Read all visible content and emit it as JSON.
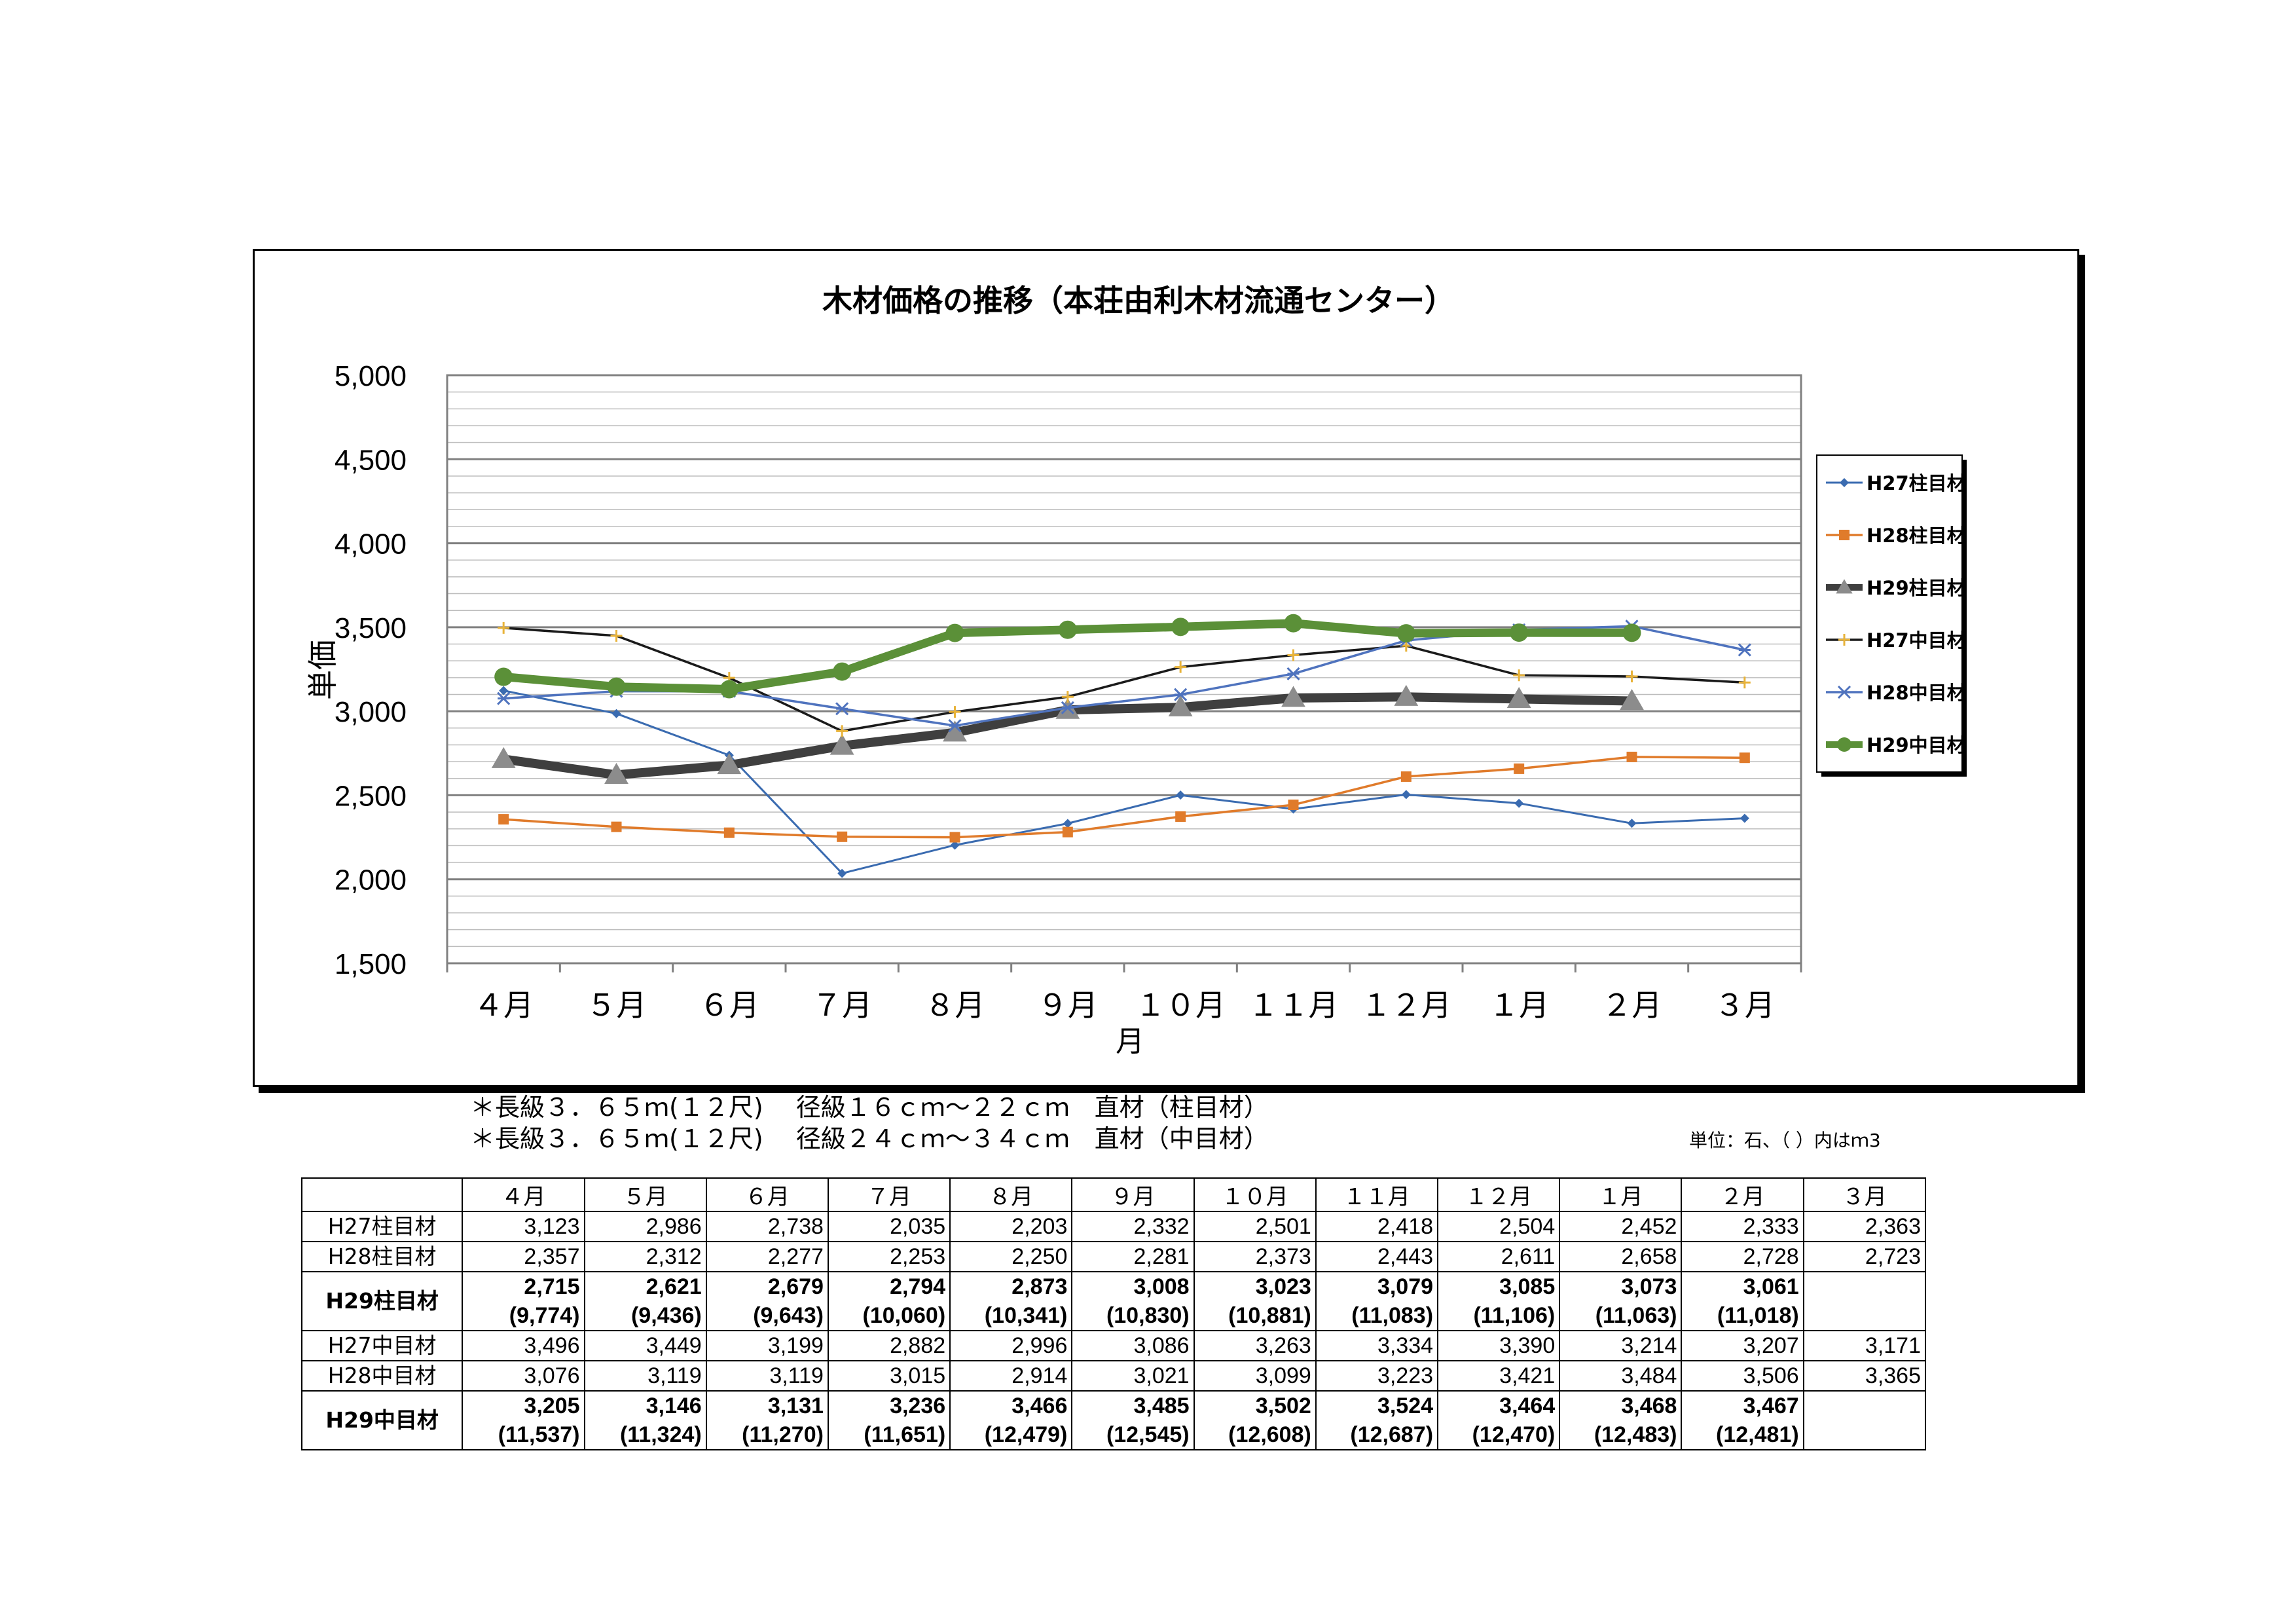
{
  "chart_data": {
    "type": "line",
    "title": "木材価格の推移（本荘由利木材流通センター）",
    "xlabel": "月",
    "ylabel": "単価",
    "categories": [
      "４月",
      "５月",
      "６月",
      "７月",
      "８月",
      "９月",
      "１０月",
      "１１月",
      "１２月",
      "１月",
      "２月",
      "３月"
    ],
    "ylim": [
      1500,
      5000
    ],
    "yticks": [
      "1,500",
      "2,000",
      "2,500",
      "3,000",
      "3,500",
      "4,000",
      "4,500",
      "5,000"
    ],
    "grid": true,
    "legend_position": "right",
    "series": [
      {
        "name": "H27柱目材",
        "color": "#3A6BB0",
        "marker": "diamond",
        "values": [
          3123,
          2986,
          2738,
          2035,
          2203,
          2332,
          2501,
          2418,
          2504,
          2452,
          2333,
          2363
        ]
      },
      {
        "name": "H28柱目材",
        "color": "#E07B2B",
        "marker": "square",
        "values": [
          2357,
          2312,
          2277,
          2253,
          2250,
          2281,
          2373,
          2443,
          2611,
          2658,
          2728,
          2723
        ]
      },
      {
        "name": "H29柱目材",
        "color": "#3F3F3F",
        "marker": "triangle",
        "values": [
          2715,
          2621,
          2679,
          2794,
          2873,
          3008,
          3023,
          3079,
          3085,
          3073,
          3061,
          null
        ]
      },
      {
        "name": "H27中目材",
        "color": "#1A1A1A",
        "marker": "plus",
        "values": [
          3496,
          3449,
          3199,
          2882,
          2996,
          3086,
          3263,
          3334,
          3390,
          3214,
          3207,
          3171
        ]
      },
      {
        "name": "H28中目材",
        "color": "#4F73BE",
        "marker": "star",
        "values": [
          3076,
          3119,
          3119,
          3015,
          2914,
          3021,
          3099,
          3223,
          3421,
          3484,
          3506,
          3365
        ]
      },
      {
        "name": "H29中目材",
        "color": "#5B9038",
        "marker": "circle",
        "values": [
          3205,
          3146,
          3131,
          3236,
          3466,
          3485,
          3502,
          3524,
          3464,
          3468,
          3467,
          null
        ]
      }
    ]
  },
  "notes": {
    "line1": "＊長級３．６５ｍ(１２尺)　 径級１６ｃｍ～２２ｃｍ　直材（柱目材）",
    "line2": "＊長級３．６５ｍ(１２尺)　 径級２４ｃｍ～３４ｃｍ　直材（中目材）",
    "unit": "単位：石、（ ）内はｍ3"
  },
  "table": {
    "headers": [
      "４月",
      "５月",
      "６月",
      "７月",
      "８月",
      "９月",
      "１０月",
      "１１月",
      "１２月",
      "１月",
      "２月",
      "３月"
    ],
    "rows": [
      {
        "label": "H27柱目材",
        "bold": false,
        "values": [
          "3,123",
          "2,986",
          "2,738",
          "2,035",
          "2,203",
          "2,332",
          "2,501",
          "2,418",
          "2,504",
          "2,452",
          "2,333",
          "2,363"
        ],
        "subs": null
      },
      {
        "label": "H28柱目材",
        "bold": false,
        "values": [
          "2,357",
          "2,312",
          "2,277",
          "2,253",
          "2,250",
          "2,281",
          "2,373",
          "2,443",
          "2,611",
          "2,658",
          "2,728",
          "2,723"
        ],
        "subs": null
      },
      {
        "label": "H29柱目材",
        "bold": true,
        "values": [
          "2,715",
          "2,621",
          "2,679",
          "2,794",
          "2,873",
          "3,008",
          "3,023",
          "3,079",
          "3,085",
          "3,073",
          "3,061",
          ""
        ],
        "subs": [
          "(9,774)",
          "(9,436)",
          "(9,643)",
          "(10,060)",
          "(10,341)",
          "(10,830)",
          "(10,881)",
          "(11,083)",
          "(11,106)",
          "(11,063)",
          "(11,018)",
          ""
        ]
      },
      {
        "label": "H27中目材",
        "bold": false,
        "values": [
          "3,496",
          "3,449",
          "3,199",
          "2,882",
          "2,996",
          "3,086",
          "3,263",
          "3,334",
          "3,390",
          "3,214",
          "3,207",
          "3,171"
        ],
        "subs": null
      },
      {
        "label": "H28中目材",
        "bold": false,
        "values": [
          "3,076",
          "3,119",
          "3,119",
          "3,015",
          "2,914",
          "3,021",
          "3,099",
          "3,223",
          "3,421",
          "3,484",
          "3,506",
          "3,365"
        ],
        "subs": null
      },
      {
        "label": "H29中目材",
        "bold": true,
        "values": [
          "3,205",
          "3,146",
          "3,131",
          "3,236",
          "3,466",
          "3,485",
          "3,502",
          "3,524",
          "3,464",
          "3,468",
          "3,467",
          ""
        ],
        "subs": [
          "(11,537)",
          "(11,324)",
          "(11,270)",
          "(11,651)",
          "(12,479)",
          "(12,545)",
          "(12,608)",
          "(12,687)",
          "(12,470)",
          "(12,483)",
          "(12,481)",
          ""
        ]
      }
    ]
  }
}
